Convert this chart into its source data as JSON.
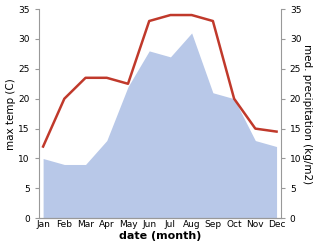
{
  "months": [
    "Jan",
    "Feb",
    "Mar",
    "Apr",
    "May",
    "Jun",
    "Jul",
    "Aug",
    "Sep",
    "Oct",
    "Nov",
    "Dec"
  ],
  "month_x": [
    1,
    2,
    3,
    4,
    5,
    6,
    7,
    8,
    9,
    10,
    11,
    12
  ],
  "temperature": [
    12,
    20,
    23.5,
    23.5,
    22.5,
    33,
    34,
    34,
    33,
    20,
    15,
    14.5
  ],
  "precipitation": [
    10,
    9,
    9,
    13,
    22,
    28,
    27,
    31,
    21,
    20,
    13,
    12
  ],
  "temp_color": "#c0392b",
  "precip_color": "#b8c8e8",
  "ylim_left": [
    0,
    35
  ],
  "ylim_right": [
    0,
    35
  ],
  "yticks_left": [
    0,
    5,
    10,
    15,
    20,
    25,
    30,
    35
  ],
  "yticks_right": [
    0,
    5,
    10,
    15,
    20,
    25,
    30,
    35
  ],
  "xlabel": "date (month)",
  "ylabel_left": "max temp (C)",
  "ylabel_right": "med. precipitation (kg/m2)",
  "temp_linewidth": 1.8,
  "background_color": "#ffffff",
  "tick_fontsize": 6.5,
  "ylabel_fontsize": 7.5,
  "xlabel_fontsize": 8
}
